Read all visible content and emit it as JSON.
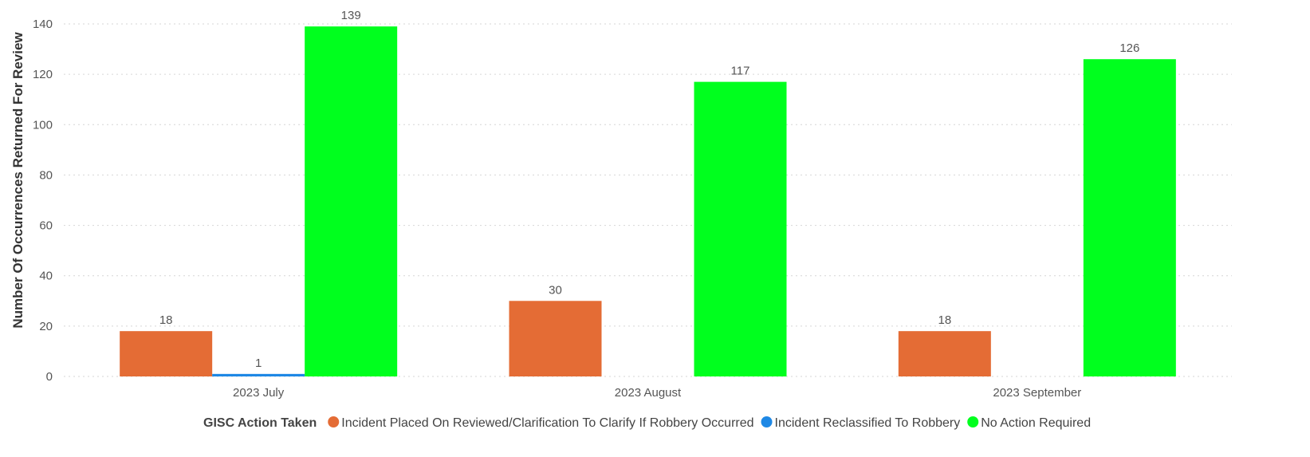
{
  "chart_data": {
    "type": "bar",
    "ylabel": "Number Of Occurrences Returned For Review",
    "xlabel": "",
    "ylim": [
      0,
      140
    ],
    "yticks": [
      0,
      20,
      40,
      60,
      80,
      100,
      120,
      140
    ],
    "grid": true,
    "categories": [
      "2023 July",
      "2023 August",
      "2023 September"
    ],
    "series": [
      {
        "name": "Incident Placed On Reviewed/Clarification To Clarify If Robbery Occurred",
        "color": "#E46C35",
        "values": [
          18,
          30,
          18
        ]
      },
      {
        "name": "Incident Reclassified To Robbery",
        "color": "#1E88E5",
        "values": [
          1,
          null,
          null
        ]
      },
      {
        "name": "No Action Required",
        "color": "#00FF1E",
        "values": [
          139,
          117,
          126
        ]
      }
    ],
    "legend": {
      "title": "GISC Action Taken",
      "position": "bottom"
    }
  }
}
